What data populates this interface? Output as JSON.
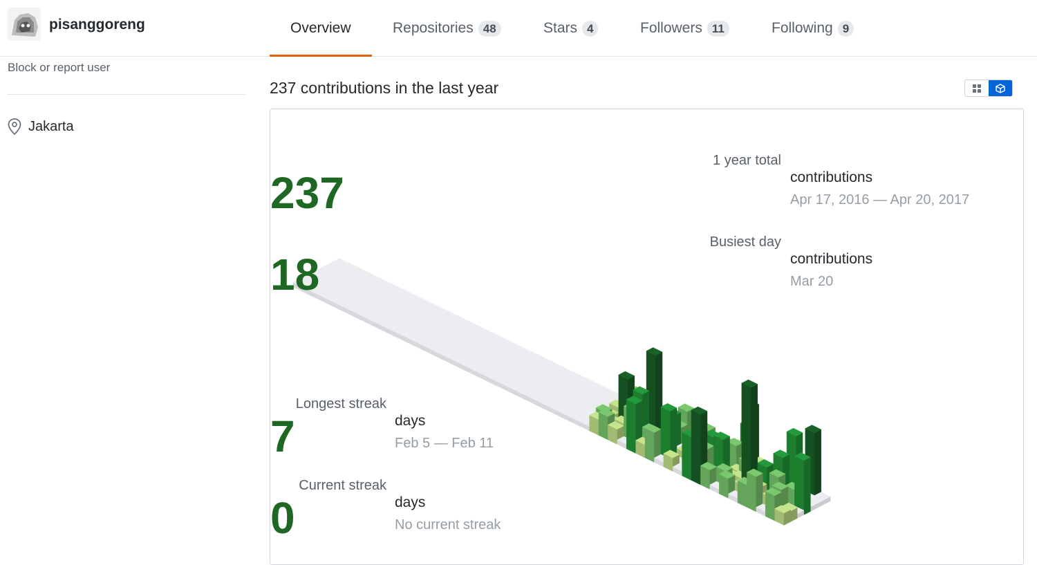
{
  "profile": {
    "username": "pisanggoreng",
    "block_link": "Block or report user",
    "location": "Jakarta"
  },
  "tabs": [
    {
      "label": "Overview",
      "count": null,
      "selected": true
    },
    {
      "label": "Repositories",
      "count": "48",
      "selected": false
    },
    {
      "label": "Stars",
      "count": "4",
      "selected": false
    },
    {
      "label": "Followers",
      "count": "11",
      "selected": false
    },
    {
      "label": "Following",
      "count": "9",
      "selected": false
    }
  ],
  "contributions": {
    "heading": "237 contributions in the last year",
    "view_toggle": {
      "options": [
        "grid-icon",
        "cube-icon"
      ],
      "active": "cube-icon"
    },
    "year_total": {
      "label": "1 year total",
      "value": "237",
      "unit": "contributions",
      "range": "Apr 17, 2016 — Apr 20, 2017"
    },
    "busiest_day": {
      "label": "Busiest day",
      "value": "18",
      "unit": "contributions",
      "range": "Mar 20"
    },
    "longest_streak": {
      "label": "Longest streak",
      "value": "7",
      "unit": "days",
      "range": "Feb 5 — Feb 11"
    },
    "current_streak": {
      "label": "Current streak",
      "value": "0",
      "unit": "days",
      "range": "No current streak"
    }
  },
  "colors": {
    "accent_tab": "#e36209",
    "toggle_active": "#0366d6",
    "stat_number": "#1e6823",
    "levels": [
      "#ebedf0",
      "#c6e48b",
      "#7bc96f",
      "#239a3b",
      "#196127"
    ]
  }
}
